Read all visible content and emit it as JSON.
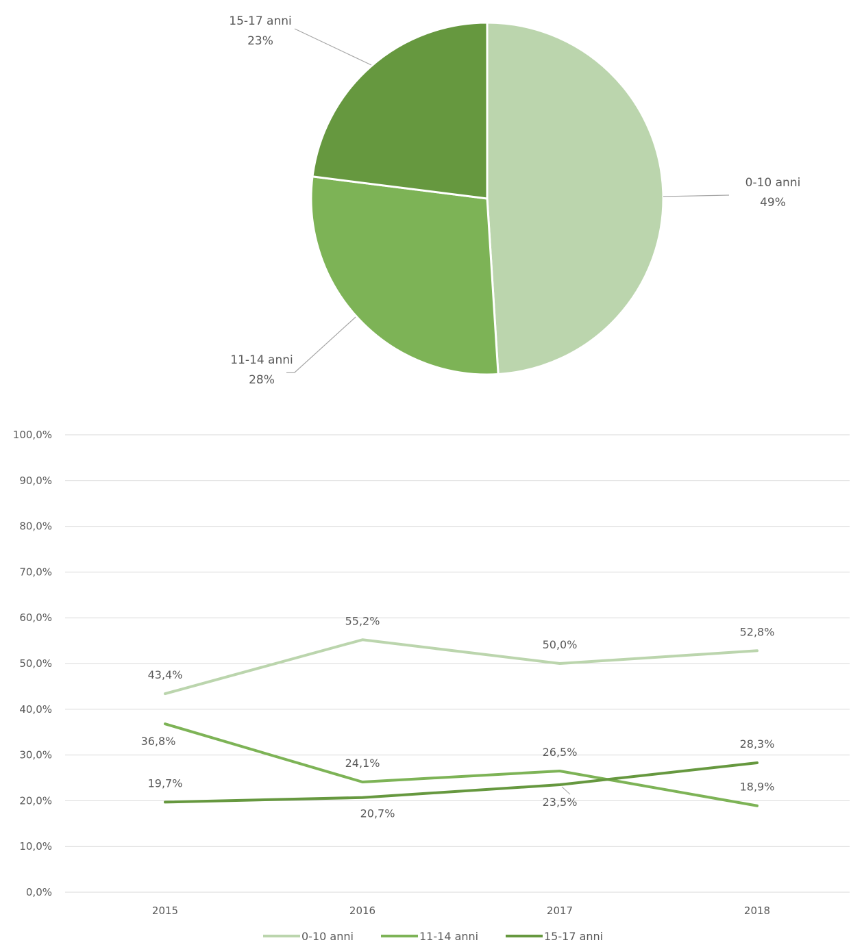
{
  "chart_data": [
    {
      "type": "pie",
      "slices": [
        {
          "label": "0-10 anni",
          "value": 49,
          "value_text": "49%",
          "color": "#bbd5ad"
        },
        {
          "label": "11-14 anni",
          "value": 28,
          "value_text": "28%",
          "color": "#7db356"
        },
        {
          "label": "15-17 anni",
          "value": 23,
          "value_text": "23%",
          "color": "#66983f"
        }
      ]
    },
    {
      "type": "line",
      "categories": [
        "2015",
        "2016",
        "2017",
        "2018"
      ],
      "ylim": [
        0,
        100
      ],
      "y_ticks": [
        "0,0%",
        "10,0%",
        "20,0%",
        "30,0%",
        "40,0%",
        "50,0%",
        "60,0%",
        "70,0%",
        "80,0%",
        "90,0%",
        "100,0%"
      ],
      "grid": true,
      "legend_position": "bottom",
      "series": [
        {
          "name": "0-10 anni",
          "color": "#bbd5ad",
          "values": [
            43.4,
            55.2,
            50.0,
            52.8
          ],
          "labels": [
            "43,4%",
            "55,2%",
            "50,0%",
            "52,8%"
          ]
        },
        {
          "name": "11-14 anni",
          "color": "#7db356",
          "values": [
            36.8,
            24.1,
            26.5,
            18.9
          ],
          "labels": [
            "36,8%",
            "24,1%",
            "26,5%",
            "18,9%"
          ]
        },
        {
          "name": "15-17 anni",
          "color": "#66983f",
          "values": [
            19.7,
            20.7,
            23.5,
            28.3
          ],
          "labels": [
            "19,7%",
            "20,7%",
            "23,5%",
            "28,3%"
          ]
        }
      ]
    }
  ]
}
